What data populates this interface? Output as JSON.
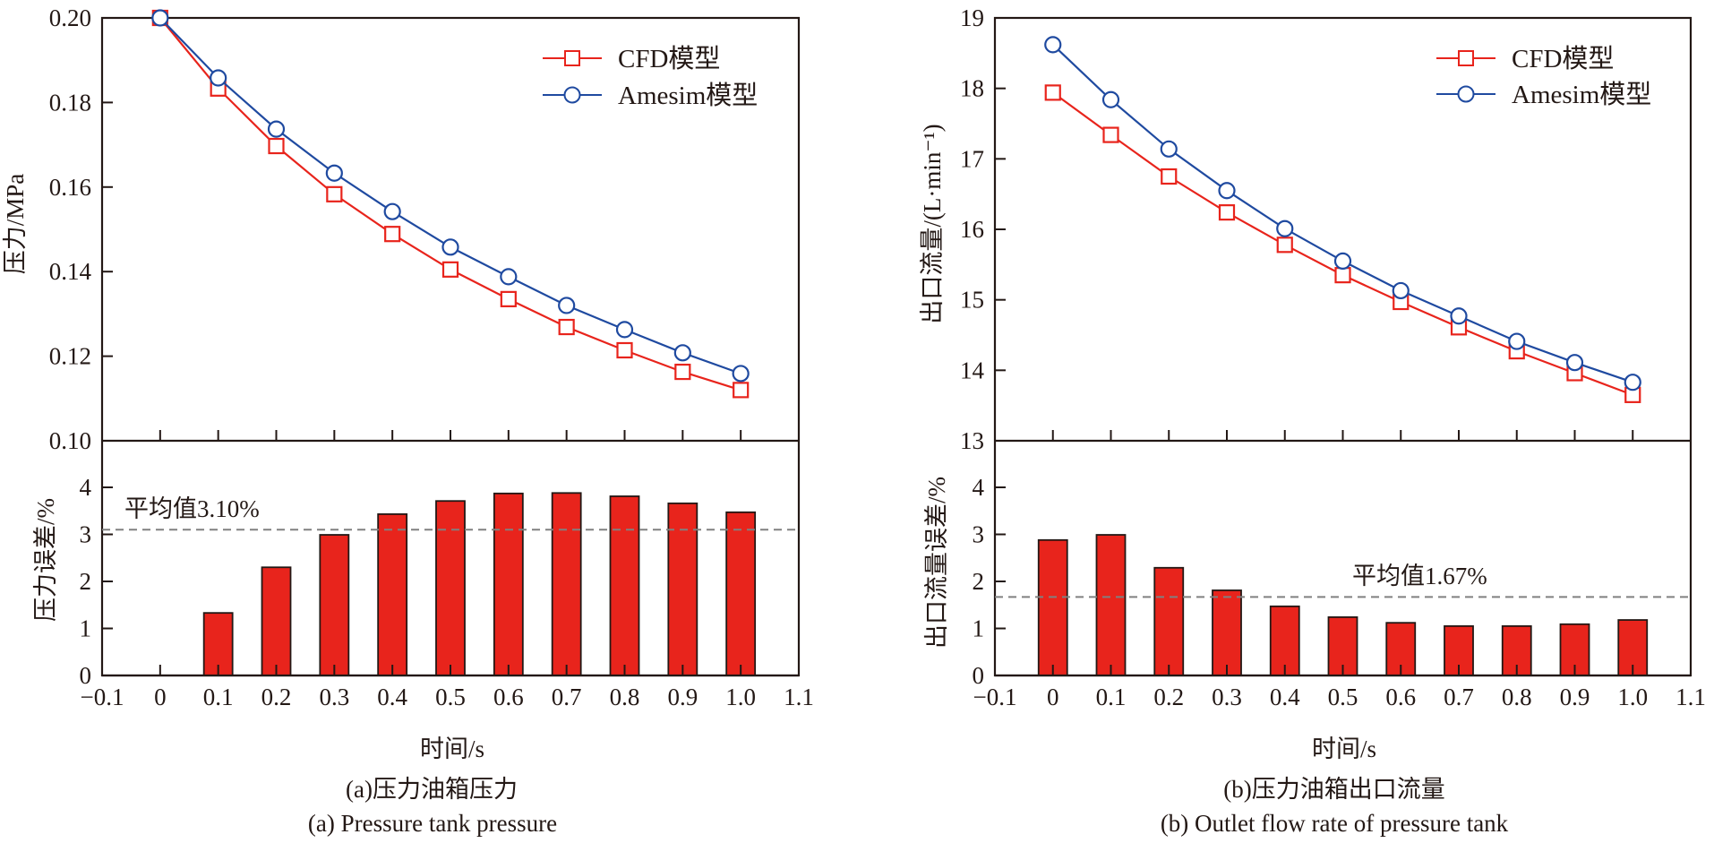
{
  "figure": {
    "panels": [
      "a",
      "b"
    ]
  },
  "chart_data": [
    {
      "id": "a",
      "type": "line",
      "panel": "upper",
      "x": [
        0,
        0.1,
        0.2,
        0.3,
        0.4,
        0.5,
        0.6,
        0.7,
        0.8,
        0.9,
        1.0
      ],
      "series": [
        {
          "name": "CFD模型",
          "marker": "square",
          "color": "#e8241c",
          "values": [
            0.2,
            0.1833,
            0.1697,
            0.1583,
            0.1489,
            0.1405,
            0.1335,
            0.1269,
            0.1214,
            0.1163,
            0.112
          ]
        },
        {
          "name": "Amesim模型",
          "marker": "circle",
          "color": "#1f4aa0",
          "values": [
            0.2,
            0.1858,
            0.1737,
            0.1633,
            0.1542,
            0.1458,
            0.1388,
            0.132,
            0.1263,
            0.1208,
            0.1159
          ]
        }
      ],
      "ylabel": "压力/MPa",
      "ylim": [
        0.1,
        0.2
      ],
      "yticks": [
        "0.10",
        "0.12",
        "0.14",
        "0.16",
        "0.18",
        "0.20"
      ],
      "xlim": [
        -0.1,
        1.1
      ],
      "legend": "top-right",
      "grid": false
    },
    {
      "id": "a",
      "type": "bar",
      "panel": "lower",
      "x": [
        0,
        0.1,
        0.2,
        0.3,
        0.4,
        0.5,
        0.6,
        0.7,
        0.8,
        0.9,
        1.0
      ],
      "values": [
        0,
        1.33,
        2.3,
        2.99,
        3.43,
        3.71,
        3.87,
        3.88,
        3.81,
        3.66,
        3.47
      ],
      "color": "#e8241c",
      "ylabel": "压力误差/%",
      "ylim": [
        0,
        4.9
      ],
      "yticks": [
        "0",
        "1",
        "2",
        "3",
        "4"
      ],
      "xlabel": "时间/s",
      "xlim": [
        -0.1,
        1.1
      ],
      "xticks": [
        "−0.1",
        "0",
        "0.1",
        "0.2",
        "0.3",
        "0.4",
        "0.5",
        "0.6",
        "0.7",
        "0.8",
        "0.9",
        "1.0",
        "1.1"
      ],
      "mean_line": {
        "value": 3.1,
        "label": "平均值3.10%"
      },
      "caption_cn": "(a)压力油箱压力",
      "caption_en": "(a) Pressure tank pressure"
    },
    {
      "id": "b",
      "type": "line",
      "panel": "upper",
      "x": [
        0,
        0.1,
        0.2,
        0.3,
        0.4,
        0.5,
        0.6,
        0.7,
        0.8,
        0.9,
        1.0
      ],
      "series": [
        {
          "name": "CFD模型",
          "marker": "square",
          "color": "#e8241c",
          "values": [
            17.94,
            17.34,
            16.75,
            16.24,
            15.78,
            15.35,
            14.97,
            14.61,
            14.27,
            13.96,
            13.65
          ]
        },
        {
          "name": "Amesim模型",
          "marker": "circle",
          "color": "#1f4aa0",
          "values": [
            18.62,
            17.84,
            17.14,
            16.55,
            16.01,
            15.55,
            15.13,
            14.77,
            14.41,
            14.11,
            13.83
          ]
        }
      ],
      "ylabel": "出口流量/(L·min⁻¹)",
      "ylim": [
        13,
        19
      ],
      "yticks": [
        "13",
        "14",
        "15",
        "16",
        "17",
        "18",
        "19"
      ],
      "xlim": [
        -0.1,
        1.1
      ],
      "legend": "top-right",
      "grid": false
    },
    {
      "id": "b",
      "type": "bar",
      "panel": "lower",
      "x": [
        0,
        0.1,
        0.2,
        0.3,
        0.4,
        0.5,
        0.6,
        0.7,
        0.8,
        0.9,
        1.0
      ],
      "values": [
        2.88,
        2.99,
        2.29,
        1.81,
        1.47,
        1.24,
        1.12,
        1.05,
        1.05,
        1.09,
        1.18
      ],
      "color": "#e8241c",
      "ylabel": "出口流量误差/%",
      "ylim": [
        0,
        4.9
      ],
      "yticks": [
        "0",
        "1",
        "2",
        "3",
        "4"
      ],
      "xlabel": "时间/s",
      "xlim": [
        -0.1,
        1.1
      ],
      "xticks": [
        "−0.1",
        "0",
        "0.1",
        "0.2",
        "0.3",
        "0.4",
        "0.5",
        "0.6",
        "0.7",
        "0.8",
        "0.9",
        "1.0",
        "1.1"
      ],
      "mean_line": {
        "value": 1.67,
        "label": "平均值1.67%"
      },
      "caption_cn": "(b)压力油箱出口流量",
      "caption_en": "(b) Outlet flow rate of pressure tank"
    }
  ]
}
